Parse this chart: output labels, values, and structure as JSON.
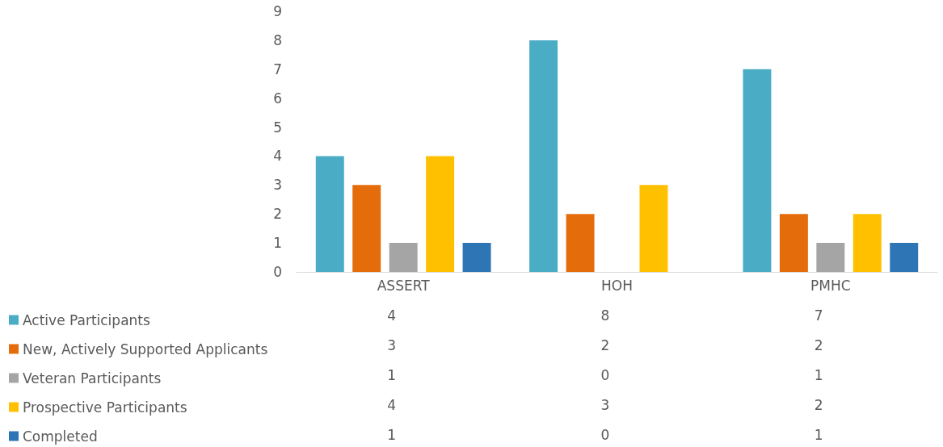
{
  "chart_data": {
    "type": "bar",
    "categories": [
      "ASSERT",
      "HOH",
      "PMHC"
    ],
    "series": [
      {
        "name": "Active Participants",
        "color": "#4bacc6",
        "values": [
          4,
          8,
          7
        ]
      },
      {
        "name": "New, Actively Supported Applicants",
        "color": "#e46c0a",
        "values": [
          3,
          2,
          2
        ]
      },
      {
        "name": "Veteran Participants",
        "color": "#a5a5a5",
        "values": [
          1,
          0,
          1
        ]
      },
      {
        "name": "Prospective Participants",
        "color": "#ffc000",
        "values": [
          4,
          3,
          2
        ]
      },
      {
        "name": "Completed",
        "color": "#2e75b6",
        "values": [
          1,
          0,
          1
        ]
      }
    ],
    "ylim": [
      0,
      9
    ],
    "yticks": [
      0,
      1,
      2,
      3,
      4,
      5,
      6,
      7,
      8,
      9
    ],
    "grid": false,
    "legend": "bottom left",
    "data_labels": true
  }
}
